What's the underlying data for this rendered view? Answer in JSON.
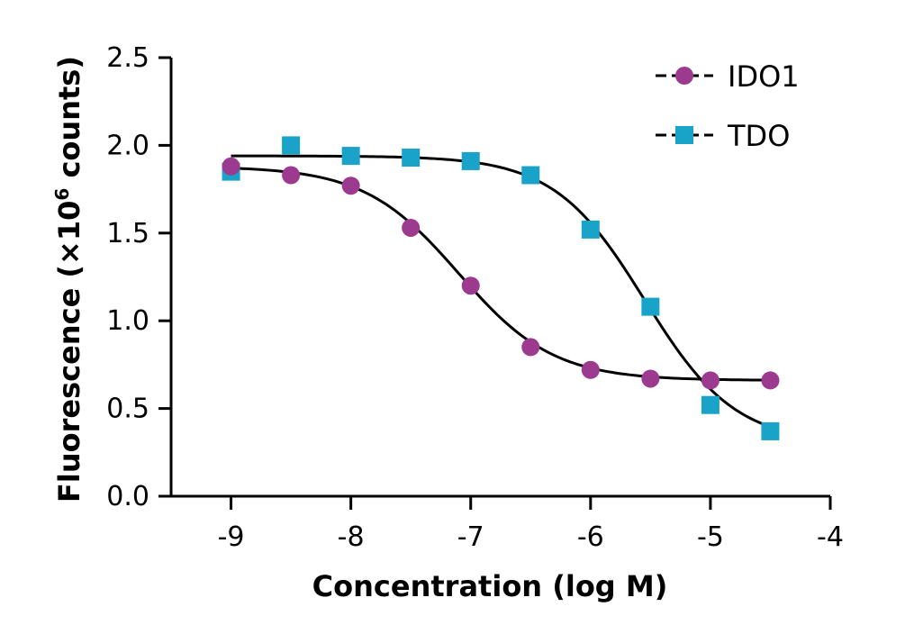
{
  "chart_data": {
    "type": "scatter",
    "xlabel": "Concentration (log M)",
    "ylabel": {
      "prefix": "Fluorescence (×10",
      "superscript": "6",
      "suffix": " counts)"
    },
    "xlim": [
      -9.5,
      -4
    ],
    "ylim": [
      0,
      2.5
    ],
    "xticks": [
      "-9",
      "-8",
      "-7",
      "-6",
      "-5",
      "-4"
    ],
    "yticks": [
      "0.0",
      "0.5",
      "1.0",
      "1.5",
      "2.0",
      "2.5"
    ],
    "legend_position": "top-right",
    "series": [
      {
        "name": "IDO1",
        "color": "#9b3a8f",
        "marker": "circle",
        "x": [
          -9,
          -8.5,
          -8,
          -7.5,
          -7,
          -6.5,
          -6,
          -5.5,
          -5,
          -4.5
        ],
        "y": [
          1.88,
          1.83,
          1.77,
          1.53,
          1.2,
          0.85,
          0.72,
          0.67,
          0.66,
          0.66
        ],
        "fit": {
          "top": 1.88,
          "bottom": 0.66,
          "log_ic50": -7.1,
          "hill_slope": 1.1
        }
      },
      {
        "name": "TDO",
        "color": "#1aa3c8",
        "marker": "square",
        "x": [
          -9,
          -8.5,
          -8,
          -7.5,
          -7,
          -6.5,
          -6,
          -5.5,
          -5,
          -4.5
        ],
        "y": [
          1.85,
          2.0,
          1.94,
          1.93,
          1.91,
          1.83,
          1.52,
          1.08,
          0.52,
          0.37
        ],
        "fit": {
          "top": 1.94,
          "bottom": 0.3,
          "log_ic50": -5.55,
          "hill_slope": 1.15
        }
      }
    ]
  }
}
